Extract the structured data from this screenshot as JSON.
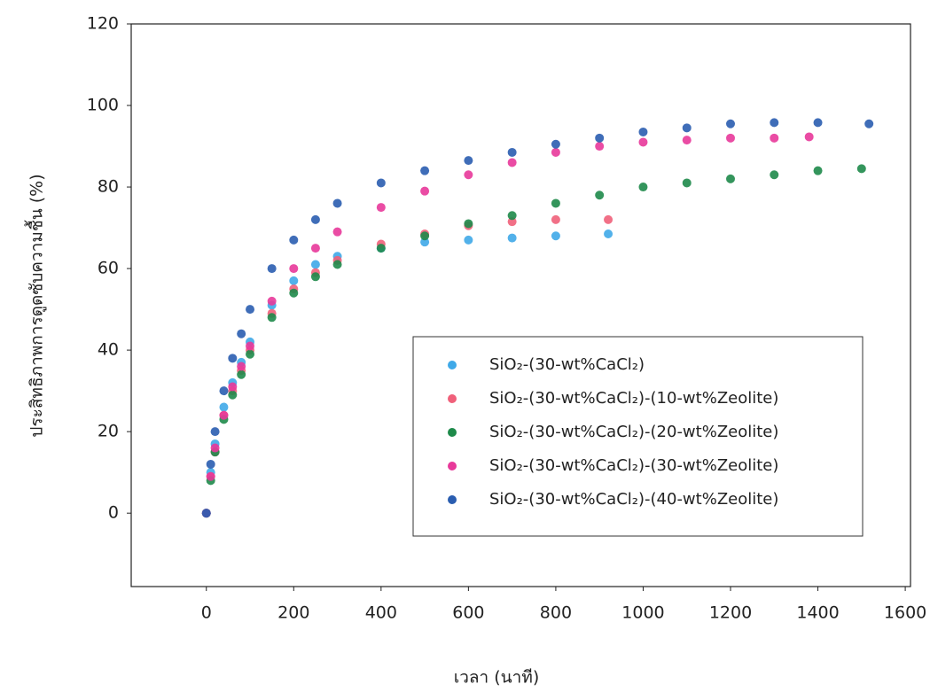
{
  "chart_data": {
    "type": "scatter",
    "x_label": "เวลา (นาที)",
    "y_label": "ประสิทธิภาพการดูดซับความชื้น (%)",
    "xlim": [
      -172,
      1612
    ],
    "ylim": [
      -18,
      120
    ],
    "xticks": [
      0,
      200,
      400,
      600,
      800,
      1000,
      1200,
      1400,
      1600
    ],
    "yticks": [
      0,
      20,
      40,
      60,
      80,
      100,
      120
    ],
    "legend": "lower right",
    "series": [
      {
        "name": "SiO₂-(30-wt%CaCl₂)",
        "color": "#3fa9e8",
        "x": [
          0,
          10,
          20,
          40,
          60,
          80,
          100,
          150,
          200,
          250,
          300,
          400,
          500,
          600,
          700,
          800,
          920
        ],
        "values": [
          0,
          10,
          17,
          26,
          32,
          37,
          42,
          51,
          57,
          61,
          63,
          65,
          66.5,
          67,
          67.5,
          68,
          68.5
        ]
      },
      {
        "name": "SiO₂-(30-wt%CaCl₂)-(10-wt%Zeolite)",
        "color": "#f0607a",
        "x": [
          0,
          10,
          20,
          40,
          60,
          80,
          100,
          150,
          200,
          250,
          300,
          400,
          500,
          600,
          700,
          800,
          920
        ],
        "values": [
          0,
          9,
          15,
          24,
          30,
          35,
          40,
          49,
          55,
          59,
          62,
          66,
          68.5,
          70.5,
          71.5,
          72,
          72
        ]
      },
      {
        "name": "SiO₂-(30-wt%CaCl₂)-(20-wt%Zeolite)",
        "color": "#1e8a4a",
        "x": [
          0,
          10,
          20,
          40,
          60,
          80,
          100,
          150,
          200,
          250,
          300,
          400,
          500,
          600,
          700,
          800,
          900,
          1000,
          1100,
          1200,
          1300,
          1400,
          1500
        ],
        "values": [
          0,
          8,
          15,
          23,
          29,
          34,
          39,
          48,
          54,
          58,
          61,
          65,
          68,
          71,
          73,
          76,
          78,
          80,
          81,
          82,
          83,
          84,
          84.5
        ]
      },
      {
        "name": "SiO₂-(30-wt%CaCl₂)-(30-wt%Zeolite)",
        "color": "#e8399a",
        "x": [
          0,
          10,
          20,
          40,
          60,
          80,
          100,
          150,
          200,
          250,
          300,
          400,
          500,
          600,
          700,
          800,
          900,
          1000,
          1100,
          1200,
          1300,
          1380
        ],
        "values": [
          0,
          9,
          16,
          24,
          31,
          36,
          41,
          52,
          60,
          65,
          69,
          75,
          79,
          83,
          86,
          88.5,
          90,
          91,
          91.5,
          92,
          92,
          92.3
        ]
      },
      {
        "name": "SiO₂-(30-wt%CaCl₂)-(40-wt%Zeolite)",
        "color": "#2a5db0",
        "x": [
          0,
          10,
          20,
          40,
          60,
          80,
          100,
          150,
          200,
          250,
          300,
          400,
          500,
          600,
          700,
          800,
          900,
          1000,
          1100,
          1200,
          1300,
          1400,
          1517
        ],
        "values": [
          0,
          12,
          20,
          30,
          38,
          44,
          50,
          60,
          67,
          72,
          76,
          81,
          84,
          86.5,
          88.5,
          90.5,
          92,
          93.5,
          94.5,
          95.5,
          95.8,
          95.8,
          95.5
        ]
      }
    ]
  }
}
